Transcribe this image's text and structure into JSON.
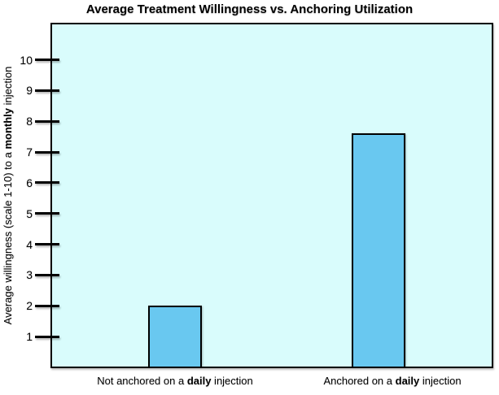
{
  "title": "Average Treatment Willingness vs. Anchoring Utilization",
  "y_axis": {
    "label_prefix": "Average willingness (scale 1-10) to a ",
    "label_bold": "monthly",
    "label_suffix": " injection",
    "tick_values": [
      1,
      2,
      3,
      4,
      5,
      6,
      7,
      8,
      9,
      10
    ]
  },
  "x_axis": {
    "categories": [
      {
        "prefix": "Not anchored on a ",
        "bold": "daily",
        "suffix": " injection"
      },
      {
        "prefix": "Anchored on a ",
        "bold": "daily",
        "suffix": " injection"
      }
    ]
  },
  "chart_data": {
    "type": "bar",
    "title": "Average Treatment Willingness vs. Anchoring Utilization",
    "categories": [
      "Not anchored on a daily injection",
      "Anchored on a daily injection"
    ],
    "values": [
      2,
      7.6
    ],
    "xlabel": "",
    "ylabel": "Average willingness (scale 1-10) to a monthly injection",
    "ylim": [
      0,
      11.2
    ],
    "y_ticks": [
      1,
      2,
      3,
      4,
      5,
      6,
      7,
      8,
      9,
      10
    ],
    "grid": false,
    "legend": false,
    "bar_color": "#69C8F0",
    "bar_border_color": "#000000",
    "plot_background": "#D9FCFC",
    "page_background": "#FFFFFF"
  }
}
